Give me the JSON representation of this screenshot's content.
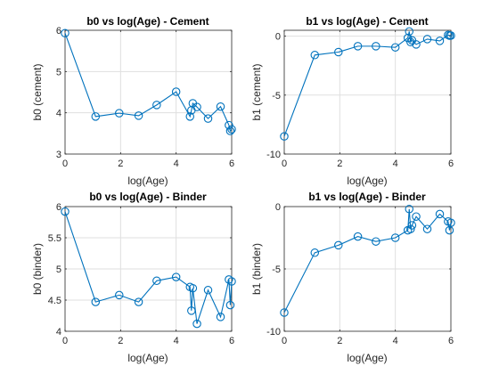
{
  "chart_data": [
    {
      "type": "line",
      "title": "b0 vs log(Age) - Cement",
      "xlabel": "log(Age)",
      "ylabel": "b0 (cement)",
      "xlim": [
        0,
        6
      ],
      "ylim": [
        3,
        6
      ],
      "xticks": [
        0,
        2,
        4,
        6
      ],
      "yticks": [
        3,
        4,
        5,
        6
      ],
      "grid": true,
      "color": "#0072bd",
      "series": [
        {
          "x": [
            0,
            1.1,
            1.95,
            2.65,
            3.3,
            4.0,
            4.5,
            4.55,
            4.6,
            4.75,
            5.15,
            5.6,
            5.9,
            5.95,
            6.0
          ],
          "y": [
            5.93,
            3.91,
            3.99,
            3.93,
            4.19,
            4.51,
            3.91,
            4.06,
            4.23,
            4.14,
            3.86,
            4.15,
            3.7,
            3.56,
            3.6
          ]
        }
      ]
    },
    {
      "type": "line",
      "title": "b1 vs log(Age) - Cement",
      "xlabel": "log(Age)",
      "ylabel": "b1 (cement)",
      "xlim": [
        0,
        6
      ],
      "ylim": [
        -10,
        0.5
      ],
      "xticks": [
        0,
        2,
        4,
        6
      ],
      "yticks": [
        -10,
        -5,
        0
      ],
      "grid": true,
      "color": "#0072bd",
      "series": [
        {
          "x": [
            0,
            1.1,
            1.95,
            2.65,
            3.3,
            4.0,
            4.45,
            4.5,
            4.55,
            4.6,
            4.75,
            5.15,
            5.6,
            5.9,
            5.95,
            6.0
          ],
          "y": [
            -8.5,
            -1.6,
            -1.35,
            -0.85,
            -0.85,
            -0.95,
            -0.15,
            0.4,
            -0.5,
            -0.35,
            -0.7,
            -0.25,
            -0.4,
            0.1,
            0.05,
            0.05
          ]
        }
      ]
    },
    {
      "type": "line",
      "title": "b0 vs log(Age) - Binder",
      "xlabel": "log(Age)",
      "ylabel": "b0 (binder)",
      "xlim": [
        0,
        6
      ],
      "ylim": [
        4,
        6
      ],
      "xticks": [
        0,
        2,
        4,
        6
      ],
      "yticks": [
        4,
        4.5,
        5,
        5.5,
        6
      ],
      "grid": true,
      "color": "#0072bd",
      "series": [
        {
          "x": [
            0,
            1.1,
            1.95,
            2.65,
            3.3,
            4.0,
            4.5,
            4.55,
            4.6,
            4.75,
            5.15,
            5.6,
            5.9,
            5.95,
            6.0
          ],
          "y": [
            5.92,
            4.47,
            4.58,
            4.47,
            4.81,
            4.87,
            4.71,
            4.33,
            4.69,
            4.12,
            4.66,
            4.23,
            4.83,
            4.42,
            4.8
          ]
        }
      ]
    },
    {
      "type": "line",
      "title": "b1 vs log(Age) - Binder",
      "xlabel": "log(Age)",
      "ylabel": "b1 (binder)",
      "xlim": [
        0,
        6
      ],
      "ylim": [
        -10,
        0
      ],
      "xticks": [
        0,
        2,
        4,
        6
      ],
      "yticks": [
        -10,
        -5,
        0
      ],
      "grid": true,
      "color": "#0072bd",
      "series": [
        {
          "x": [
            0,
            1.1,
            1.95,
            2.65,
            3.3,
            4.0,
            4.45,
            4.5,
            4.55,
            4.6,
            4.75,
            5.15,
            5.6,
            5.9,
            5.95,
            6.0
          ],
          "y": [
            -8.5,
            -3.7,
            -3.1,
            -2.4,
            -2.8,
            -2.5,
            -1.9,
            -0.2,
            -1.8,
            -1.5,
            -0.8,
            -1.8,
            -0.6,
            -1.2,
            -1.9,
            -1.3
          ]
        }
      ]
    }
  ]
}
